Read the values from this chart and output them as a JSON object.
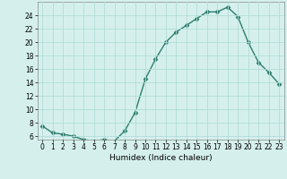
{
  "x": [
    0,
    1,
    2,
    3,
    4,
    5,
    6,
    7,
    8,
    9,
    10,
    11,
    12,
    13,
    14,
    15,
    16,
    17,
    18,
    19,
    20,
    21,
    22,
    23
  ],
  "y": [
    7.5,
    6.5,
    6.3,
    6.0,
    5.5,
    5.3,
    5.5,
    5.3,
    6.8,
    9.5,
    14.5,
    17.5,
    20.0,
    21.5,
    22.5,
    23.5,
    24.5,
    24.5,
    25.2,
    23.8,
    20.0,
    17.0,
    15.5,
    13.8
  ],
  "line_color": "#2d7d6e",
  "marker": "D",
  "marker_size": 2.5,
  "bg_color": "#d5f0ec",
  "grid_color": "#b2dcd8",
  "xlabel": "Humidex (Indice chaleur)",
  "xlim": [
    -0.5,
    23.5
  ],
  "ylim": [
    5.5,
    26.0
  ],
  "yticks": [
    6,
    8,
    10,
    12,
    14,
    16,
    18,
    20,
    22,
    24
  ],
  "xticks": [
    0,
    1,
    2,
    3,
    4,
    5,
    6,
    7,
    8,
    9,
    10,
    11,
    12,
    13,
    14,
    15,
    16,
    17,
    18,
    19,
    20,
    21,
    22,
    23
  ],
  "xlabel_fontsize": 6.5,
  "tick_fontsize": 5.5,
  "linewidth": 1.0
}
